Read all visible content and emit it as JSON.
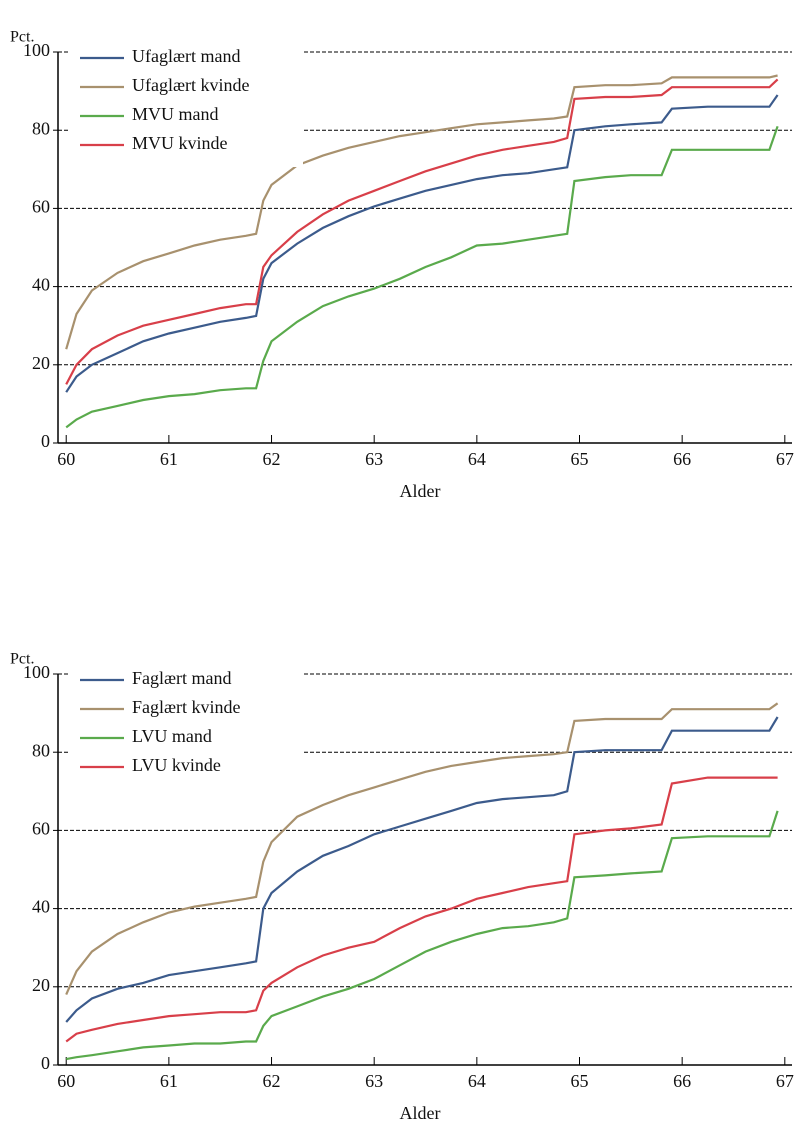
{
  "chart_data": [
    {
      "type": "line",
      "y_label": "Pct.",
      "x_label": "Alder",
      "x": [
        60,
        60.1,
        60.25,
        60.5,
        60.75,
        61,
        61.25,
        61.5,
        61.75,
        61.85,
        61.92,
        62,
        62.25,
        62.5,
        62.75,
        63,
        63.25,
        63.5,
        63.75,
        64,
        64.25,
        64.5,
        64.75,
        64.88,
        64.95,
        65.25,
        65.5,
        65.8,
        65.9,
        66.25,
        66.5,
        66.85,
        66.93
      ],
      "xlim": [
        59.92,
        67.07
      ],
      "xticks": [
        60,
        61,
        62,
        63,
        64,
        65,
        66,
        67
      ],
      "ylim": [
        0,
        100
      ],
      "yticks": [
        0,
        20,
        40,
        60,
        80,
        100
      ],
      "grid": true,
      "legend": "upper left",
      "series": [
        {
          "name": "Ufaglært mand",
          "color": "#3c5b8c",
          "values": [
            13,
            17,
            20,
            23,
            26,
            28,
            29.5,
            31,
            32,
            32.5,
            42,
            46,
            51,
            55,
            58,
            60.5,
            62.5,
            64.5,
            66,
            67.5,
            68.5,
            69,
            70,
            70.5,
            80,
            81,
            81.5,
            82,
            85.5,
            86,
            86,
            86,
            89
          ]
        },
        {
          "name": "Ufaglært kvinde",
          "color": "#a8916e",
          "values": [
            24,
            33,
            39,
            43.5,
            46.5,
            48.5,
            50.5,
            52,
            53,
            53.5,
            62,
            66,
            71,
            73.5,
            75.5,
            77,
            78.5,
            79.5,
            80.5,
            81.5,
            82,
            82.5,
            83,
            83.5,
            91,
            91.5,
            91.5,
            92,
            93.5,
            93.5,
            93.5,
            93.5,
            94
          ]
        },
        {
          "name": "MVU mand",
          "color": "#5aaa4c",
          "values": [
            4,
            6,
            8,
            9.5,
            11,
            12,
            12.5,
            13.5,
            14,
            14,
            21,
            26,
            31,
            35,
            37.5,
            39.5,
            42,
            45,
            47.5,
            50.5,
            51,
            52,
            53,
            53.5,
            67,
            68,
            68.5,
            68.5,
            75,
            75,
            75,
            75,
            81
          ]
        },
        {
          "name": "MVU kvinde",
          "color": "#d83f49",
          "values": [
            15,
            20,
            24,
            27.5,
            30,
            31.5,
            33,
            34.5,
            35.5,
            35.5,
            45,
            48,
            54,
            58.5,
            62,
            64.5,
            67,
            69.5,
            71.5,
            73.5,
            75,
            76,
            77,
            78,
            88,
            88.5,
            88.5,
            89,
            91,
            91,
            91,
            91,
            93
          ]
        }
      ]
    },
    {
      "type": "line",
      "y_label": "Pct.",
      "x_label": "Alder",
      "x": [
        60,
        60.1,
        60.25,
        60.5,
        60.75,
        61,
        61.25,
        61.5,
        61.75,
        61.85,
        61.92,
        62,
        62.25,
        62.5,
        62.75,
        63,
        63.25,
        63.5,
        63.75,
        64,
        64.25,
        64.5,
        64.75,
        64.88,
        64.95,
        65.25,
        65.5,
        65.8,
        65.9,
        66.25,
        66.5,
        66.85,
        66.93
      ],
      "xlim": [
        59.92,
        67.07
      ],
      "xticks": [
        60,
        61,
        62,
        63,
        64,
        65,
        66,
        67
      ],
      "ylim": [
        0,
        100
      ],
      "yticks": [
        0,
        20,
        40,
        60,
        80,
        100
      ],
      "grid": true,
      "legend": "upper left",
      "series": [
        {
          "name": "Faglært mand",
          "color": "#3c5b8c",
          "values": [
            11,
            14,
            17,
            19.5,
            21,
            23,
            24,
            25,
            26,
            26.5,
            40,
            44,
            49.5,
            53.5,
            56,
            59,
            61,
            63,
            65,
            67,
            68,
            68.5,
            69,
            70,
            80,
            80.5,
            80.5,
            80.5,
            85.5,
            85.5,
            85.5,
            85.5,
            89
          ]
        },
        {
          "name": "Faglært kvinde",
          "color": "#a8916e",
          "values": [
            18,
            24,
            29,
            33.5,
            36.5,
            39,
            40.5,
            41.5,
            42.5,
            43,
            52,
            57,
            63.5,
            66.5,
            69,
            71,
            73,
            75,
            76.5,
            77.5,
            78.5,
            79,
            79.5,
            80,
            88,
            88.5,
            88.5,
            88.5,
            91,
            91,
            91,
            91,
            92.5
          ]
        },
        {
          "name": "LVU mand",
          "color": "#5aaa4c",
          "values": [
            1.5,
            2,
            2.5,
            3.5,
            4.5,
            5,
            5.5,
            5.5,
            6,
            6,
            10,
            12.5,
            15,
            17.5,
            19.5,
            22,
            25.5,
            29,
            31.5,
            33.5,
            35,
            35.5,
            36.5,
            37.5,
            48,
            48.5,
            49,
            49.5,
            58,
            58.5,
            58.5,
            58.5,
            65
          ]
        },
        {
          "name": "LVU kvinde",
          "color": "#d83f49",
          "values": [
            6,
            8,
            9,
            10.5,
            11.5,
            12.5,
            13,
            13.5,
            13.5,
            14,
            19,
            21,
            25,
            28,
            30,
            31.5,
            35,
            38,
            40,
            42.5,
            44,
            45.5,
            46.5,
            47,
            59,
            60,
            60.5,
            61.5,
            72,
            73.5,
            73.5,
            73.5,
            73.5
          ]
        }
      ]
    }
  ]
}
